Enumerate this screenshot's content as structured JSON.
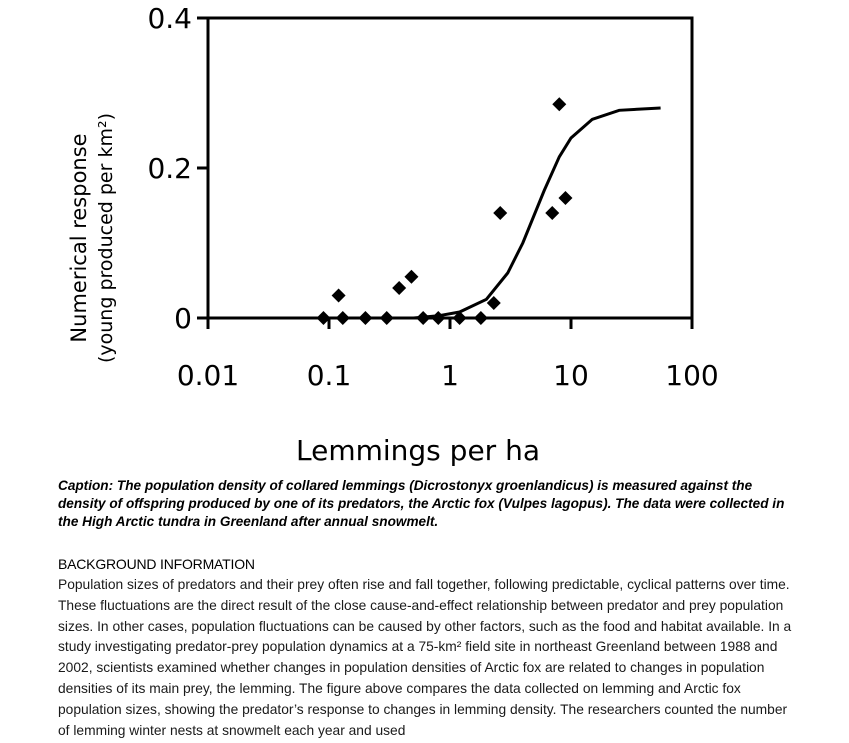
{
  "chart_data": {
    "type": "scatter",
    "xlabel": "Lemmings per ha",
    "ylabel_line1": "Numerical response",
    "ylabel_line2": "(young produced per km²)",
    "xscale": "log",
    "xlim": [
      0.01,
      100
    ],
    "ylim": [
      0,
      0.4
    ],
    "x_ticks": [
      0.01,
      0.1,
      1,
      10,
      100
    ],
    "x_tick_labels": [
      "0.01",
      "0.1",
      "1",
      "10",
      "100"
    ],
    "y_ticks": [
      0,
      0.2,
      0.4
    ],
    "y_tick_labels": [
      "0",
      "0.2",
      "0.4"
    ],
    "grid": false,
    "legend": "none",
    "marker": "diamond",
    "points": [
      {
        "x": 0.09,
        "y": 0
      },
      {
        "x": 0.12,
        "y": 0.03
      },
      {
        "x": 0.13,
        "y": 0
      },
      {
        "x": 0.2,
        "y": 0
      },
      {
        "x": 0.3,
        "y": 0
      },
      {
        "x": 0.38,
        "y": 0.04
      },
      {
        "x": 0.48,
        "y": 0.055
      },
      {
        "x": 0.6,
        "y": 0
      },
      {
        "x": 0.8,
        "y": 0
      },
      {
        "x": 1.2,
        "y": 0
      },
      {
        "x": 1.8,
        "y": 0
      },
      {
        "x": 2.3,
        "y": 0.02
      },
      {
        "x": 2.6,
        "y": 0.14
      },
      {
        "x": 7.0,
        "y": 0.14
      },
      {
        "x": 8.0,
        "y": 0.285
      },
      {
        "x": 9.0,
        "y": 0.16
      }
    ],
    "fit_curve": [
      {
        "x": 0.1,
        "y": 0
      },
      {
        "x": 0.5,
        "y": 0.0
      },
      {
        "x": 0.8,
        "y": 0.003
      },
      {
        "x": 1.2,
        "y": 0.008
      },
      {
        "x": 2.0,
        "y": 0.025
      },
      {
        "x": 3.0,
        "y": 0.06
      },
      {
        "x": 4.0,
        "y": 0.1
      },
      {
        "x": 6.0,
        "y": 0.17
      },
      {
        "x": 8.0,
        "y": 0.215
      },
      {
        "x": 10.0,
        "y": 0.24
      },
      {
        "x": 15.0,
        "y": 0.265
      },
      {
        "x": 25.0,
        "y": 0.277
      },
      {
        "x": 55.0,
        "y": 0.28
      }
    ],
    "colors": {
      "marks": "#000000"
    }
  },
  "caption": "Caption: The population density of collared lemmings (Dicrostonyx groenlandicus) is measured against the density of offspring produced by one of its predators, the Arctic fox (Vulpes lagopus). The data were collected in the High Arctic tundra in Greenland after annual snowmelt.",
  "background": {
    "heading": "BACKGROUND INFORMATION",
    "text": "Population sizes of predators and their prey often rise and fall together, following predictable, cyclical patterns over time. These fluctuations are the direct result of the close cause-and-effect relationship between predator and prey population sizes. In other cases, population fluctuations can be caused by other factors, such as the food and habitat available. In a study investigating predator-prey population dynamics at a 75-km² field site in northeast Greenland between 1988 and 2002, scientists examined whether changes in population densities of Arctic fox are related to changes in population densities of its main prey, the lemming. The figure above compares the data collected on lemming and Arctic fox population sizes, showing the predator’s response to changes in lemming density. The researchers counted the number of lemming winter nests at snowmelt each year and used"
  }
}
